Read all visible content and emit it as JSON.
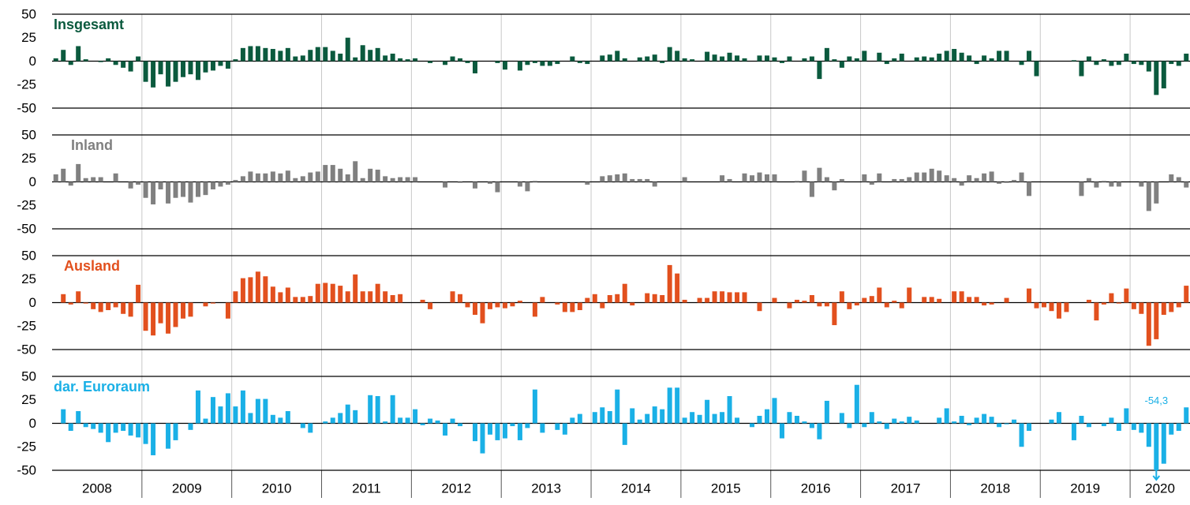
{
  "chart_data": [
    {
      "type": "bar",
      "title": "Insgesamt",
      "color": "#0b5a3e",
      "ylim": [
        -50,
        50
      ],
      "yticks": [
        50,
        25,
        0,
        -25,
        -50
      ],
      "values": [
        3,
        12,
        -4,
        16,
        2,
        0,
        -1,
        3,
        -4,
        -7,
        -11,
        5,
        -22,
        -28,
        -14,
        -27,
        -22,
        -17,
        -14,
        -20,
        -12,
        -10,
        -5,
        -8,
        2,
        14,
        16,
        16,
        14,
        13,
        11,
        14,
        5,
        6,
        12,
        15,
        15,
        11,
        8,
        25,
        4,
        17,
        12,
        14,
        6,
        8,
        3,
        2,
        3,
        0,
        -2,
        0,
        -4,
        5,
        3,
        -2,
        -13,
        0,
        0,
        -2,
        -9,
        0,
        -10,
        -4,
        -2,
        -5,
        -5,
        -3,
        0,
        5,
        -2,
        -3,
        0,
        6,
        7,
        11,
        3,
        0,
        4,
        5,
        7,
        -2,
        15,
        11,
        3,
        2,
        0,
        10,
        7,
        5,
        9,
        6,
        3,
        0,
        6,
        6,
        4,
        -2,
        5,
        0,
        3,
        5,
        -19,
        14,
        2,
        -7,
        5,
        3,
        11,
        0,
        9,
        -3,
        3,
        8,
        0,
        4,
        5,
        4,
        8,
        11,
        13,
        9,
        6,
        -3,
        6,
        3,
        11,
        11,
        0,
        -4,
        11,
        -16,
        0,
        0,
        0,
        0,
        1,
        -16,
        5,
        -4,
        2,
        -5,
        -4,
        8,
        -3,
        -4,
        -11,
        -36,
        -29,
        -3,
        -5,
        8
      ]
    },
    {
      "type": "bar",
      "title": "Inland",
      "color": "#808080",
      "ylim": [
        -50,
        50
      ],
      "yticks": [
        50,
        25,
        0,
        -25,
        -50
      ],
      "values": [
        8,
        14,
        -4,
        19,
        4,
        5,
        5,
        0,
        9,
        0,
        -7,
        -3,
        -17,
        -24,
        -8,
        -23,
        -17,
        -16,
        -22,
        -16,
        -14,
        -8,
        -5,
        -3,
        2,
        6,
        11,
        9,
        9,
        11,
        9,
        12,
        4,
        6,
        10,
        11,
        18,
        18,
        14,
        8,
        22,
        4,
        14,
        13,
        6,
        4,
        5,
        5,
        5,
        0,
        0,
        0,
        -6,
        0,
        -1,
        0,
        -7,
        0,
        -2,
        -11,
        0,
        0,
        -5,
        -10,
        1,
        0,
        0,
        0,
        0,
        0,
        0,
        -3,
        0,
        6,
        7,
        8,
        9,
        3,
        3,
        3,
        -5,
        0,
        0,
        0,
        5,
        0,
        0,
        0,
        0,
        7,
        3,
        0,
        9,
        7,
        10,
        8,
        8,
        0,
        0,
        1,
        12,
        -16,
        15,
        5,
        -9,
        3,
        0,
        0,
        8,
        -3,
        9,
        0,
        3,
        3,
        5,
        10,
        10,
        14,
        12,
        7,
        4,
        -4,
        7,
        4,
        9,
        11,
        -2,
        -1,
        2,
        10,
        -15,
        0,
        0,
        0,
        0,
        0,
        0,
        -15,
        4,
        -6,
        1,
        -5,
        -5,
        0,
        0,
        -5,
        -31,
        -23,
        0,
        8,
        5,
        -6
      ]
    },
    {
      "type": "bar",
      "title": "Ausland",
      "color": "#e2501e",
      "ylim": [
        -50,
        50
      ],
      "yticks": [
        50,
        25,
        0,
        -25,
        -50
      ],
      "values": [
        0,
        9,
        -2,
        12,
        -1,
        -7,
        -10,
        -8,
        -5,
        -12,
        -15,
        19,
        -30,
        -35,
        -22,
        -33,
        -26,
        -17,
        -15,
        0,
        -4,
        -1,
        0,
        -17,
        12,
        26,
        27,
        33,
        28,
        17,
        11,
        16,
        6,
        6,
        7,
        20,
        21,
        20,
        18,
        12,
        30,
        12,
        12,
        20,
        12,
        8,
        9,
        0,
        0,
        3,
        -7,
        0,
        0,
        12,
        9,
        -5,
        -13,
        -22,
        -7,
        -5,
        -6,
        -4,
        2,
        0,
        -15,
        6,
        0,
        -2,
        -10,
        -10,
        -8,
        5,
        9,
        -6,
        8,
        9,
        20,
        -3,
        0,
        10,
        9,
        8,
        40,
        31,
        3,
        0,
        5,
        5,
        12,
        12,
        11,
        11,
        11,
        0,
        -9,
        0,
        5,
        0,
        -6,
        3,
        2,
        8,
        -4,
        -4,
        -24,
        12,
        -7,
        -3,
        5,
        7,
        16,
        -5,
        2,
        -6,
        16,
        0,
        6,
        6,
        4,
        0,
        12,
        12,
        6,
        6,
        -3,
        -2,
        0,
        5,
        0,
        0,
        15,
        -6,
        -5,
        -9,
        -17,
        -10,
        0,
        0,
        3,
        -19,
        -2,
        10,
        -1,
        15,
        -7,
        -12,
        -46,
        -39,
        -13,
        -10,
        -5,
        18
      ]
    },
    {
      "type": "bar",
      "title": "dar. Euroraum",
      "color": "#1ab0e6",
      "ylim": [
        -50,
        50
      ],
      "yticks": [
        50,
        25,
        0,
        -25,
        -50
      ],
      "values": [
        0,
        15,
        -8,
        13,
        -4,
        -6,
        -10,
        -20,
        -10,
        -8,
        -13,
        -15,
        -22,
        -34,
        0,
        -27,
        -18,
        0,
        -7,
        35,
        5,
        28,
        18,
        32,
        18,
        35,
        11,
        26,
        26,
        9,
        6,
        13,
        0,
        -5,
        -10,
        0,
        2,
        6,
        11,
        20,
        14,
        0,
        30,
        29,
        2,
        30,
        6,
        6,
        15,
        -2,
        5,
        3,
        -13,
        5,
        -3,
        0,
        -19,
        -32,
        -12,
        -18,
        -16,
        -3,
        -18,
        -5,
        36,
        -10,
        0,
        -7,
        -12,
        6,
        10,
        0,
        12,
        17,
        13,
        36,
        -23,
        16,
        4,
        10,
        18,
        15,
        38,
        38,
        6,
        12,
        9,
        25,
        10,
        12,
        29,
        6,
        0,
        -4,
        8,
        15,
        27,
        -16,
        12,
        8,
        2,
        -5,
        -17,
        24,
        0,
        11,
        -5,
        41,
        -4,
        12,
        2,
        -6,
        5,
        2,
        7,
        3,
        0,
        0,
        6,
        16,
        2,
        8,
        -2,
        6,
        10,
        7,
        -4,
        -1,
        4,
        -25,
        -8,
        0,
        0,
        4,
        12,
        0,
        -18,
        8,
        -4,
        0,
        -3,
        6,
        -8,
        16,
        -7,
        -10,
        -25,
        -54.3,
        -43,
        -12,
        -8,
        17
      ],
      "value_labels": [
        null,
        null,
        null,
        null,
        null,
        null,
        null,
        null,
        null,
        null,
        null,
        null,
        null,
        null,
        null,
        null,
        null,
        null,
        null,
        null,
        null,
        null,
        null,
        null,
        null,
        null,
        null,
        null,
        null,
        null,
        null,
        null,
        null,
        null,
        null,
        null,
        null,
        null,
        null,
        null,
        null,
        null,
        null,
        null,
        null,
        null,
        null,
        null,
        null,
        null,
        null,
        null,
        null,
        null,
        null,
        null,
        null,
        null,
        null,
        null,
        null,
        null,
        null,
        null,
        null,
        null,
        null,
        null,
        null,
        null,
        null,
        null,
        null,
        null,
        null,
        null,
        null,
        null,
        null,
        null,
        null,
        null,
        null,
        null,
        null,
        null,
        null,
        null,
        null,
        null,
        null,
        null,
        null,
        null,
        null,
        null,
        null,
        null,
        null,
        null,
        null,
        null,
        null,
        null,
        null,
        null,
        null,
        null,
        null,
        null,
        null,
        null,
        null,
        null,
        null,
        null,
        null,
        null,
        null,
        null,
        null,
        null,
        null,
        null,
        null,
        null,
        null,
        null,
        null,
        null,
        null,
        null,
        null,
        null,
        null,
        null,
        null,
        null,
        null,
        null,
        null,
        null,
        null,
        null,
        null,
        null,
        null,
        "-54,3",
        null,
        null,
        null,
        null
      ],
      "year_labels": [
        "2008",
        "2009",
        "2010",
        "2011",
        "2012",
        "2013",
        "2014",
        "2015",
        "2016",
        "2017",
        "2018",
        "2019",
        "2020"
      ]
    }
  ]
}
